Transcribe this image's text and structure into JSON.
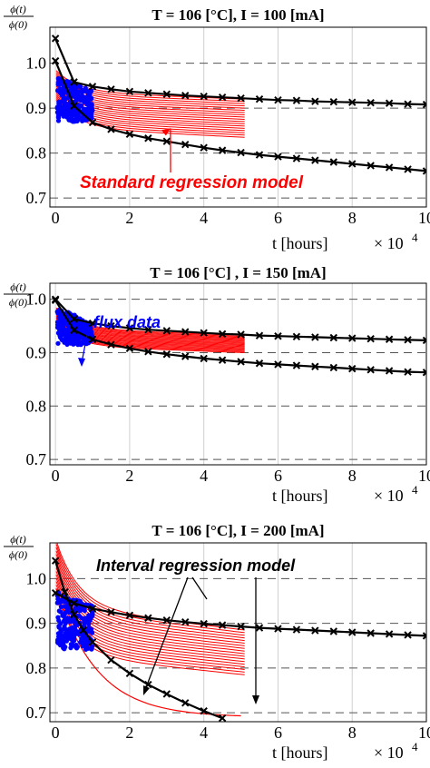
{
  "chart_data": [
    {
      "type": "line",
      "title": "T = 106 [°C], I = 100 [mA]",
      "ylabel_num": "ϕ(t)",
      "ylabel_den": "ϕ(0)",
      "xlabel": "t  [hours]",
      "x_multiplier": "× 10",
      "x_multiplier_exp": "4",
      "xlim": [
        -0.15,
        10
      ],
      "ylim": [
        0.68,
        1.08
      ],
      "xticks": [
        0,
        2,
        4,
        6,
        8,
        10
      ],
      "yticks": [
        0.7,
        0.8,
        0.9,
        1.0
      ],
      "ytick_labels": [
        "0.7",
        "0.8",
        "0.9",
        "1.0"
      ],
      "grid": true,
      "series": [
        {
          "role": "interval-upper",
          "color": "#000000",
          "marker": "x",
          "x": [
            0,
            0.5,
            1,
            1.5,
            2,
            2.5,
            3,
            3.5,
            4,
            4.5,
            5,
            5.5,
            6,
            6.5,
            7,
            7.5,
            8,
            8.5,
            9,
            9.5,
            10
          ],
          "y": [
            1.055,
            0.958,
            0.948,
            0.942,
            0.937,
            0.934,
            0.931,
            0.928,
            0.926,
            0.924,
            0.922,
            0.92,
            0.918,
            0.917,
            0.915,
            0.914,
            0.913,
            0.912,
            0.911,
            0.909,
            0.908
          ]
        },
        {
          "role": "interval-lower",
          "color": "#000000",
          "marker": "x",
          "x": [
            0,
            0.5,
            1,
            1.5,
            2,
            2.5,
            3,
            3.5,
            4,
            4.5,
            5,
            5.5,
            6,
            6.5,
            7,
            7.5,
            8,
            8.5,
            9,
            9.5,
            10
          ],
          "y": [
            1.005,
            0.905,
            0.868,
            0.853,
            0.842,
            0.833,
            0.826,
            0.819,
            0.812,
            0.806,
            0.801,
            0.796,
            0.792,
            0.788,
            0.784,
            0.78,
            0.776,
            0.772,
            0.768,
            0.764,
            0.76
          ]
        }
      ],
      "regression_band": {
        "color": "#ff0000",
        "x_end": 5.1,
        "start_low": 0.92,
        "start_high": 0.985,
        "end_low": 0.835,
        "end_high": 0.92,
        "count": 18
      },
      "flux_data": {
        "color": "#0000ff",
        "x_range": [
          0.05,
          1.0
        ],
        "y_low": 0.87,
        "y_high": 0.97
      },
      "annotations": [
        {
          "text": "Standard regression model",
          "color": "#ff0000",
          "at": [
            4.1,
            0.765
          ],
          "arrow_to": [
            3.1,
            0.855
          ]
        }
      ]
    },
    {
      "type": "line",
      "title": "T = 106 [°C] , I = 150 [mA]",
      "ylabel_num": "ϕ(t)",
      "ylabel_den": "ϕ(0)",
      "xlabel": "t  [hours]",
      "x_multiplier": "× 10",
      "x_multiplier_exp": "4",
      "xlim": [
        -0.15,
        10
      ],
      "ylim": [
        0.69,
        1.03
      ],
      "xticks": [
        0,
        2,
        4,
        6,
        8,
        10
      ],
      "yticks": [
        0.7,
        0.8,
        0.9,
        1.0
      ],
      "ytick_labels": [
        "0.7",
        "0.8",
        "0.9",
        "1.0"
      ],
      "grid": true,
      "series": [
        {
          "role": "interval-upper",
          "color": "#000000",
          "marker": "x",
          "x": [
            0,
            0.5,
            1,
            1.5,
            2,
            2.5,
            3,
            3.5,
            4,
            4.5,
            5,
            5.5,
            6,
            6.5,
            7,
            7.5,
            8,
            8.5,
            9,
            9.5,
            10
          ],
          "y": [
            1.0,
            0.963,
            0.955,
            0.95,
            0.946,
            0.943,
            0.941,
            0.939,
            0.937,
            0.935,
            0.934,
            0.932,
            0.931,
            0.93,
            0.929,
            0.928,
            0.927,
            0.926,
            0.925,
            0.924,
            0.923
          ]
        },
        {
          "role": "interval-lower",
          "color": "#000000",
          "marker": "x",
          "x": [
            0,
            0.5,
            1,
            1.5,
            2,
            2.5,
            3,
            3.5,
            4,
            4.5,
            5,
            5.5,
            6,
            6.5,
            7,
            7.5,
            8,
            8.5,
            9,
            9.5,
            10
          ],
          "y": [
            0.998,
            0.942,
            0.925,
            0.915,
            0.908,
            0.902,
            0.897,
            0.893,
            0.889,
            0.886,
            0.883,
            0.88,
            0.878,
            0.876,
            0.874,
            0.872,
            0.87,
            0.868,
            0.866,
            0.864,
            0.863
          ]
        }
      ],
      "regression_band": {
        "color": "#ff0000",
        "x_end": 5.1,
        "start_low": 0.95,
        "start_high": 0.985,
        "end_low": 0.9,
        "end_high": 0.932,
        "count": 18
      },
      "flux_data": {
        "color": "#0000ff",
        "x_range": [
          0.05,
          1.0
        ],
        "y_low": 0.915,
        "y_high": 0.985
      },
      "annotations": [
        {
          "text": "flux data",
          "color": "#0000ff",
          "at": [
            0.85,
            1.04
          ],
          "arrow_to": [
            0.7,
            0.97
          ]
        }
      ]
    },
    {
      "type": "line",
      "title": "T = 106  [°C], I = 200  [mA]",
      "ylabel_num": "ϕ(t)",
      "ylabel_den": "ϕ(0)",
      "xlabel": "t  [hours]",
      "x_multiplier": "× 10",
      "x_multiplier_exp": "4",
      "xlim": [
        -0.15,
        10
      ],
      "ylim": [
        0.68,
        1.08
      ],
      "xticks": [
        0,
        2,
        4,
        6,
        8,
        10
      ],
      "yticks": [
        0.7,
        0.8,
        0.9,
        1.0
      ],
      "ytick_labels": [
        "0.7",
        "0.8",
        "0.9",
        "1.0"
      ],
      "grid": true,
      "series": [
        {
          "role": "interval-upper",
          "color": "#000000",
          "marker": "x",
          "x": [
            0,
            0.5,
            1,
            1.5,
            2,
            2.5,
            3,
            3.5,
            4,
            4.5,
            5,
            5.5,
            6,
            6.5,
            7,
            7.5,
            8,
            8.5,
            9,
            9.5,
            10
          ],
          "y": [
            0.968,
            0.945,
            0.933,
            0.925,
            0.918,
            0.912,
            0.907,
            0.903,
            0.899,
            0.896,
            0.893,
            0.89,
            0.888,
            0.886,
            0.884,
            0.882,
            0.88,
            0.878,
            0.876,
            0.874,
            0.872
          ]
        },
        {
          "role": "interval-lower",
          "color": "#000000",
          "marker": "x",
          "x": [
            0,
            0.25,
            0.5,
            0.75,
            1,
            1.5,
            2,
            2.5,
            3,
            3.5,
            4,
            4.5
          ],
          "y": [
            1.04,
            0.97,
            0.92,
            0.885,
            0.858,
            0.818,
            0.788,
            0.763,
            0.742,
            0.722,
            0.704,
            0.688
          ]
        }
      ],
      "regression_band": {
        "color": "#ff0000",
        "x_end": 5.1,
        "start_low": 0.96,
        "start_high": 1.09,
        "end_low": 0.785,
        "end_high": 0.885,
        "count": 18
      },
      "flux_data": {
        "color": "#0000ff",
        "x_range": [
          0.05,
          1.0
        ],
        "y_low": 0.84,
        "y_high": 0.97
      },
      "annotations": [
        {
          "text": "Interval regression model",
          "color": "#000000",
          "at": [
            5.6,
            1.04
          ],
          "arrow_to": [
            4.6,
            0.895
          ]
        }
      ]
    }
  ]
}
